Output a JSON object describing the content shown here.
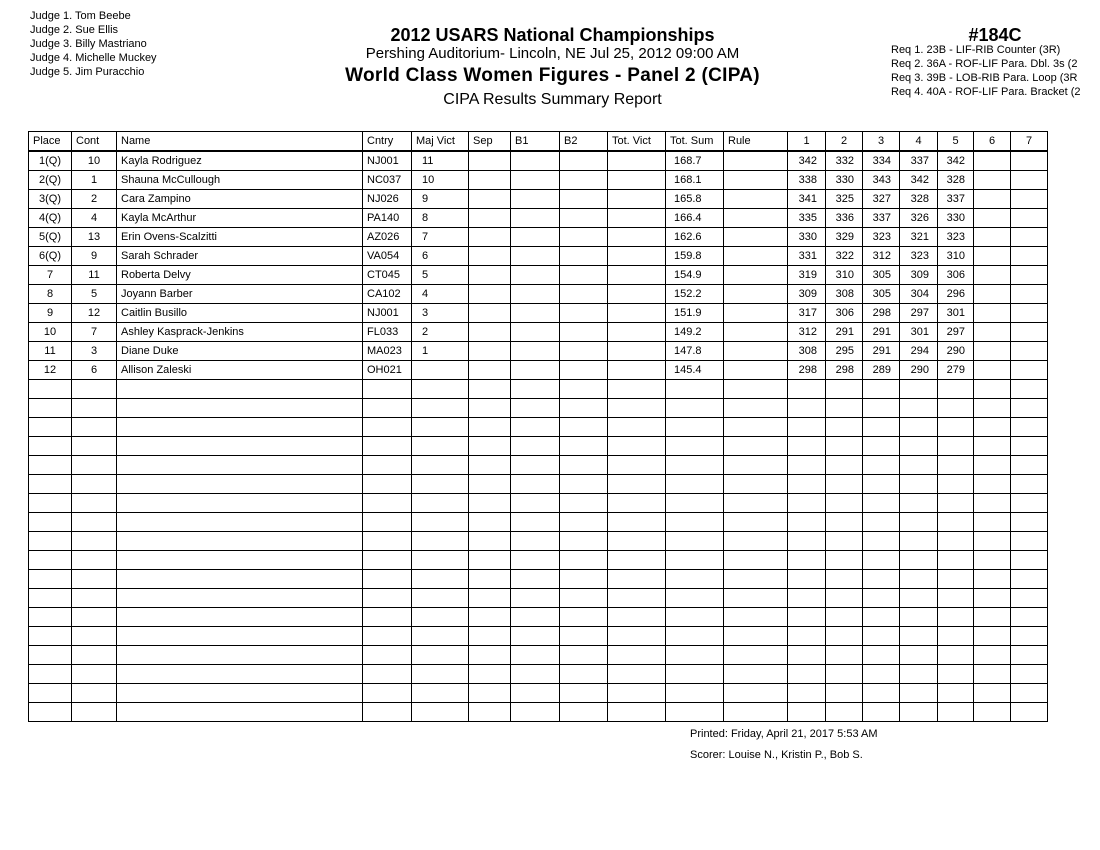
{
  "judges": [
    "Judge  1.  Tom Beebe",
    "Judge  2.  Sue Ellis",
    "Judge  3.  Billy Mastriano",
    "Judge  4.  Michelle Muckey",
    "Judge  5.  Jim Puracchio"
  ],
  "header": {
    "title": "2012 USARS National Championships",
    "venue": "Pershing Auditorium- Lincoln, NE  Jul 25, 2012  09:00 AM",
    "event": "World Class Women Figures - Panel 2 (CIPA)",
    "report": "CIPA Results Summary Report",
    "event_number": "#184C"
  },
  "requirements": [
    "Req  1.  23B - LIF-RIB Counter (3R)",
    "Req  2.  36A - ROF-LIF Para. Dbl. 3s (2",
    "Req  3.  39B - LOB-RIB Para. Loop (3R",
    "Req  4.  40A - ROF-LIF Para. Bracket (2"
  ],
  "table": {
    "columns": [
      "Place",
      "Cont",
      "Name",
      "Cntry",
      "Maj Vict",
      "Sep",
      "B1",
      "B2",
      "Tot. Vict",
      "Tot. Sum",
      "Rule",
      "1",
      "2",
      "3",
      "4",
      "5",
      "6",
      "7"
    ],
    "rows": [
      [
        "1(Q)",
        "10",
        "Kayla Rodriguez",
        "NJ001",
        "11",
        "",
        "",
        "",
        "",
        "168.7",
        "",
        "342",
        "332",
        "334",
        "337",
        "342",
        "",
        ""
      ],
      [
        "2(Q)",
        "1",
        "Shauna McCullough",
        "NC037",
        "10",
        "",
        "",
        "",
        "",
        "168.1",
        "",
        "338",
        "330",
        "343",
        "342",
        "328",
        "",
        ""
      ],
      [
        "3(Q)",
        "2",
        "Cara Zampino",
        "NJ026",
        "9",
        "",
        "",
        "",
        "",
        "165.8",
        "",
        "341",
        "325",
        "327",
        "328",
        "337",
        "",
        ""
      ],
      [
        "4(Q)",
        "4",
        "Kayla McArthur",
        "PA140",
        "8",
        "",
        "",
        "",
        "",
        "166.4",
        "",
        "335",
        "336",
        "337",
        "326",
        "330",
        "",
        ""
      ],
      [
        "5(Q)",
        "13",
        "Erin Ovens-Scalzitti",
        "AZ026",
        "7",
        "",
        "",
        "",
        "",
        "162.6",
        "",
        "330",
        "329",
        "323",
        "321",
        "323",
        "",
        ""
      ],
      [
        "6(Q)",
        "9",
        "Sarah Schrader",
        "VA054",
        "6",
        "",
        "",
        "",
        "",
        "159.8",
        "",
        "331",
        "322",
        "312",
        "323",
        "310",
        "",
        ""
      ],
      [
        "7",
        "11",
        "Roberta Delvy",
        "CT045",
        "5",
        "",
        "",
        "",
        "",
        "154.9",
        "",
        "319",
        "310",
        "305",
        "309",
        "306",
        "",
        ""
      ],
      [
        "8",
        "5",
        "Joyann Barber",
        "CA102",
        "4",
        "",
        "",
        "",
        "",
        "152.2",
        "",
        "309",
        "308",
        "305",
        "304",
        "296",
        "",
        ""
      ],
      [
        "9",
        "12",
        "Caitlin Busillo",
        "NJ001",
        "3",
        "",
        "",
        "",
        "",
        "151.9",
        "",
        "317",
        "306",
        "298",
        "297",
        "301",
        "",
        ""
      ],
      [
        "10",
        "7",
        "Ashley Kasprack-Jenkins",
        "FL033",
        "2",
        "",
        "",
        "",
        "",
        "149.2",
        "",
        "312",
        "291",
        "291",
        "301",
        "297",
        "",
        ""
      ],
      [
        "11",
        "3",
        "Diane Duke",
        "MA023",
        "1",
        "",
        "",
        "",
        "",
        "147.8",
        "",
        "308",
        "295",
        "291",
        "294",
        "290",
        "",
        ""
      ],
      [
        "12",
        "6",
        "Allison Zaleski",
        "OH021",
        "",
        "",
        "",
        "",
        "",
        "145.4",
        "",
        "298",
        "298",
        "289",
        "290",
        "279",
        "",
        ""
      ]
    ]
  },
  "footer": {
    "printed": "Printed:  Friday, April 21, 2017  5:53 AM",
    "scorer": "Scorer:  Louise N., Kristin P., Bob S."
  }
}
